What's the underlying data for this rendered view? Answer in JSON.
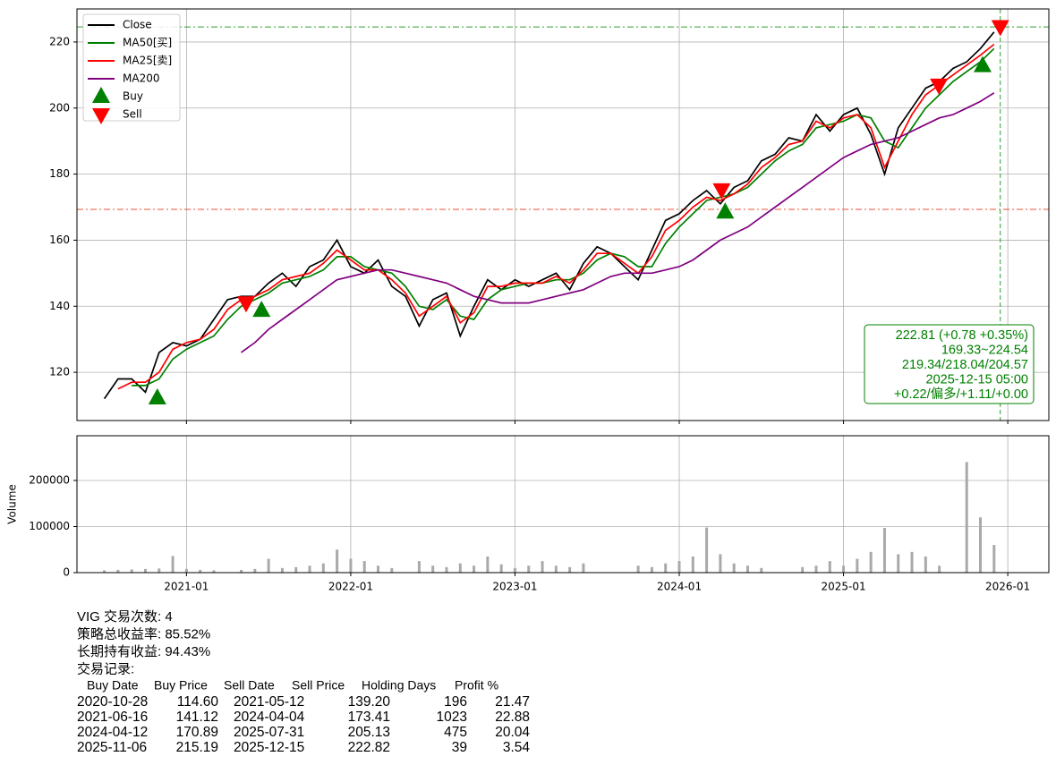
{
  "chart_data": [
    {
      "type": "line",
      "x": [
        "2020-07",
        "2020-08",
        "2020-09",
        "2020-10",
        "2020-11",
        "2020-12",
        "2021-01",
        "2021-02",
        "2021-03",
        "2021-04",
        "2021-05",
        "2021-06",
        "2021-07",
        "2021-08",
        "2021-09",
        "2021-10",
        "2021-11",
        "2021-12",
        "2022-01",
        "2022-02",
        "2022-03",
        "2022-04",
        "2022-05",
        "2022-06",
        "2022-07",
        "2022-08",
        "2022-09",
        "2022-10",
        "2022-11",
        "2022-12",
        "2023-01",
        "2023-02",
        "2023-03",
        "2023-04",
        "2023-05",
        "2023-06",
        "2023-07",
        "2023-08",
        "2023-09",
        "2023-10",
        "2023-11",
        "2023-12",
        "2024-01",
        "2024-02",
        "2024-03",
        "2024-04",
        "2024-05",
        "2024-06",
        "2024-07",
        "2024-08",
        "2024-09",
        "2024-10",
        "2024-11",
        "2024-12",
        "2025-01",
        "2025-02",
        "2025-03",
        "2025-04",
        "2025-05",
        "2025-06",
        "2025-07",
        "2025-08",
        "2025-09",
        "2025-10",
        "2025-11",
        "2025-12"
      ],
      "series": [
        {
          "name": "Close",
          "color": "#000000",
          "values": [
            112,
            118,
            118,
            114,
            126,
            129,
            128,
            130,
            136,
            142,
            143,
            143,
            147,
            150,
            146,
            152,
            154,
            160,
            152,
            150,
            154,
            146,
            143,
            134,
            142,
            144,
            131,
            140,
            148,
            145,
            148,
            146,
            148,
            150,
            145,
            153,
            158,
            156,
            152,
            148,
            157,
            166,
            168,
            172,
            175,
            171,
            176,
            178,
            184,
            186,
            191,
            190,
            198,
            193,
            198,
            200,
            192,
            180,
            194,
            200,
            206,
            208,
            212,
            214,
            218,
            223
          ]
        },
        {
          "name": "MA50[买]",
          "color": "#008000",
          "values": [
            null,
            null,
            116,
            116,
            118,
            124,
            127,
            129,
            131,
            136,
            140,
            142,
            144,
            147,
            148,
            149,
            151,
            155,
            155,
            152,
            151,
            150,
            146,
            140,
            139,
            142,
            137,
            136,
            142,
            145,
            146,
            147,
            147,
            148,
            148,
            150,
            154,
            156,
            155,
            152,
            152,
            159,
            164,
            168,
            172,
            173,
            174,
            176,
            180,
            184,
            187,
            189,
            194,
            195,
            196,
            198,
            197,
            190,
            188,
            194,
            200,
            204,
            208,
            211,
            214,
            218
          ]
        },
        {
          "name": "MA25[卖]",
          "color": "#ff0000",
          "values": [
            null,
            115,
            117,
            117,
            120,
            127,
            129,
            130,
            133,
            139,
            142,
            143,
            145,
            148,
            149,
            150,
            153,
            157,
            154,
            151,
            151,
            148,
            144,
            137,
            140,
            143,
            135,
            138,
            146,
            146,
            147,
            147,
            147,
            149,
            147,
            151,
            156,
            156,
            153,
            150,
            155,
            163,
            166,
            170,
            173,
            172,
            174,
            177,
            182,
            185,
            189,
            190,
            196,
            194,
            197,
            198,
            194,
            182,
            190,
            198,
            204,
            207,
            210,
            213,
            216,
            219.3
          ]
        },
        {
          "name": "MA200",
          "color": "#800080",
          "values": [
            null,
            null,
            null,
            null,
            null,
            null,
            null,
            null,
            null,
            null,
            126,
            129,
            133,
            136,
            139,
            142,
            145,
            148,
            149,
            150,
            151,
            151,
            150,
            149,
            148,
            147,
            145,
            143,
            142,
            141,
            141,
            141,
            142,
            143,
            144,
            145,
            147,
            149,
            150,
            150,
            150,
            151,
            152,
            154,
            157,
            160,
            162,
            164,
            167,
            170,
            173,
            176,
            179,
            182,
            185,
            187,
            189,
            190,
            191,
            193,
            195,
            197,
            198,
            200,
            202,
            204.6
          ]
        }
      ],
      "buy": {
        "name": "Buy",
        "color": "#008000",
        "x": [
          "2020-10-28",
          "2021-06-16",
          "2024-04-12",
          "2025-11-06"
        ],
        "values": [
          114.6,
          141.12,
          170.89,
          215.19
        ]
      },
      "sell": {
        "name": "Sell",
        "color": "#ff0000",
        "x": [
          "2021-05-12",
          "2024-04-04",
          "2025-07-31",
          "2025-12-15"
        ],
        "values": [
          139.2,
          173.41,
          205.13,
          222.82
        ]
      },
      "hlines": [
        {
          "value": 169.33,
          "color": "#e8503a"
        },
        {
          "value": 224.54,
          "color": "#2ca02c"
        }
      ],
      "vline": "2025-12-15",
      "info": [
        "222.81 (+0.78 +0.35%)",
        "169.33~224.54",
        "219.34/218.04/204.57",
        "2025-12-15 05:00",
        "+0.22/偏多/+1.11/+0.00"
      ],
      "xlim": [
        "2020-05",
        "2026-04"
      ],
      "ylim": [
        105.4,
        230
      ],
      "yticks": [
        120,
        140,
        160,
        180,
        200,
        220
      ],
      "grid": true,
      "legend": "upper left"
    },
    {
      "type": "bar",
      "y_label": "Volume",
      "x": [
        "2020-07",
        "2020-08",
        "2020-09",
        "2020-10",
        "2020-11",
        "2020-12",
        "2021-01",
        "2021-02",
        "2021-03",
        "2021-04",
        "2021-05",
        "2021-06",
        "2021-07",
        "2021-08",
        "2021-09",
        "2021-10",
        "2021-11",
        "2021-12",
        "2022-01",
        "2022-02",
        "2022-03",
        "2022-04",
        "2022-05",
        "2022-06",
        "2022-07",
        "2022-08",
        "2022-09",
        "2022-10",
        "2022-11",
        "2022-12",
        "2023-01",
        "2023-02",
        "2023-03",
        "2023-04",
        "2023-05",
        "2023-06",
        "2023-07",
        "2023-08",
        "2023-09",
        "2023-10",
        "2023-11",
        "2023-12",
        "2024-01",
        "2024-02",
        "2024-03",
        "2024-04",
        "2024-05",
        "2024-06",
        "2024-07",
        "2024-08",
        "2024-09",
        "2024-10",
        "2024-11",
        "2024-12",
        "2025-01",
        "2025-02",
        "2025-03",
        "2025-04",
        "2025-05",
        "2025-06",
        "2025-07",
        "2025-08",
        "2025-09",
        "2025-10",
        "2025-11",
        "2025-12"
      ],
      "values": [
        5000,
        6000,
        7000,
        8000,
        9000,
        36000,
        8000,
        6000,
        5000,
        null,
        6000,
        8000,
        30000,
        10000,
        12000,
        15000,
        20000,
        50000,
        30000,
        25000,
        15000,
        10000,
        null,
        25000,
        15000,
        12000,
        20000,
        15000,
        35000,
        18000,
        10000,
        15000,
        25000,
        15000,
        12000,
        20000,
        null,
        null,
        null,
        15000,
        12000,
        20000,
        25000,
        35000,
        98000,
        40000,
        20000,
        15000,
        10000,
        null,
        null,
        12000,
        15000,
        25000,
        15000,
        30000,
        45000,
        97000,
        40000,
        45000,
        35000,
        15000,
        null,
        240000,
        120000,
        60000
      ],
      "color": "#a9a9a9",
      "xlim": [
        "2020-05",
        "2026-04"
      ],
      "xticks": [
        "2021-01",
        "2022-01",
        "2023-01",
        "2024-01",
        "2025-01",
        "2026-01"
      ],
      "ylim": [
        0,
        297000
      ],
      "yticks": [
        0,
        100000,
        200000
      ],
      "grid": true
    }
  ],
  "stats": [
    "VIG 交易次数: 4",
    "策略总收益率: 85.52%",
    "长期持有收益: 94.43%",
    "交易记录:"
  ],
  "trades": {
    "header": [
      "Buy Date",
      "Buy Price",
      "Sell Date",
      "Sell Price",
      "Holding Days",
      "Profit %"
    ],
    "rows": [
      [
        "2020-10-28",
        "114.60",
        "2021-05-12",
        "139.20",
        "196",
        "21.47"
      ],
      [
        "2021-06-16",
        "141.12",
        "2024-04-04",
        "173.41",
        "1023",
        "22.88"
      ],
      [
        "2024-04-12",
        "170.89",
        "2025-07-31",
        "205.13",
        "475",
        "20.04"
      ],
      [
        "2025-11-06",
        "215.19",
        "2025-12-15",
        "222.82",
        "39",
        "3.54"
      ]
    ]
  }
}
